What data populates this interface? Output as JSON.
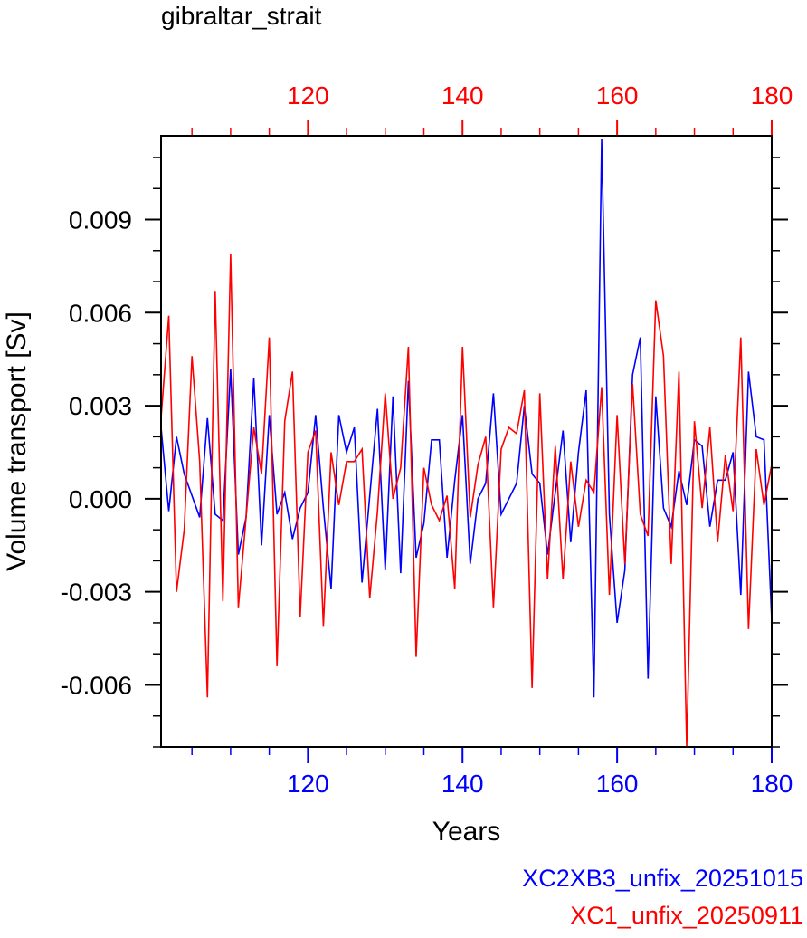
{
  "title": "gibraltar_strait",
  "colors": {
    "blue": "#0000ff",
    "red": "#ff0000",
    "axis": "#000000"
  },
  "chart_data": {
    "type": "line",
    "title": "gibraltar_strait",
    "xlabel": "Years",
    "ylabel": "Volume transport [Sv]",
    "xlim": [
      101,
      180
    ],
    "ylim": [
      -0.008,
      0.0117
    ],
    "x_ticks": [
      120,
      140,
      160,
      180
    ],
    "x_tick_labels": [
      "120",
      "140",
      "160",
      "180"
    ],
    "y_ticks": [
      -0.006,
      -0.003,
      0.0,
      0.003,
      0.006,
      0.009
    ],
    "y_tick_labels": [
      "-0.006",
      "-0.003",
      "0.000",
      "0.003",
      "0.006",
      "0.009"
    ],
    "grid": false,
    "legend_position": "bottom-right",
    "series": [
      {
        "name": "XC2XB3_unfix_20251015",
        "color": "#0000ff",
        "axis": "bottom",
        "x_start": 101,
        "values": [
          0.0023,
          -0.0004,
          0.002,
          0.0008,
          0.0001,
          -0.0006,
          0.0026,
          -0.0005,
          -0.0007,
          0.0042,
          -0.0018,
          -0.0006,
          0.0039,
          -0.0015,
          0.0027,
          -0.0005,
          0.0002,
          -0.0013,
          -0.0003,
          0.0002,
          0.0027,
          -0.0003,
          -0.0029,
          0.0027,
          0.0015,
          0.0023,
          -0.0027,
          0.0001,
          0.0029,
          -0.0023,
          0.0033,
          -0.0024,
          0.0038,
          -0.0019,
          -0.0008,
          0.0019,
          0.0019,
          -0.0019,
          0.0006,
          0.0027,
          -0.0021,
          0.0,
          0.0005,
          0.0034,
          -0.0005,
          0.0,
          0.0005,
          0.003,
          0.0008,
          0.0005,
          -0.0018,
          0.0002,
          0.0022,
          -0.0014,
          0.0015,
          0.0035,
          -0.0064,
          0.0116,
          -0.0005,
          -0.004,
          -0.0023,
          0.004,
          0.0052,
          -0.0058,
          0.0033,
          -0.0003,
          -0.0009,
          0.0009,
          -0.0002,
          0.0019,
          0.0017,
          -0.0009,
          0.0006,
          0.0006,
          0.0015,
          -0.0031,
          0.0041,
          0.002,
          0.0019,
          -0.0039
        ]
      },
      {
        "name": "XC1_unfix_20250911",
        "color": "#ff0000",
        "axis": "top",
        "x_start": 101,
        "values": [
          0.0026,
          0.0059,
          -0.003,
          -0.001,
          0.0046,
          0.0012,
          -0.0064,
          0.0067,
          -0.0033,
          0.0079,
          -0.0035,
          -0.0006,
          0.0023,
          0.0008,
          0.0052,
          -0.0054,
          0.0025,
          0.0041,
          -0.0038,
          0.0015,
          0.0022,
          -0.0041,
          0.0015,
          -0.0002,
          0.0012,
          0.0012,
          0.0016,
          -0.0032,
          -0.0004,
          0.0034,
          0.0,
          0.001,
          0.0049,
          -0.0051,
          0.001,
          -0.0002,
          -0.0007,
          0.0001,
          -0.0029,
          0.0049,
          -0.0006,
          0.0011,
          0.002,
          -0.0035,
          0.0016,
          0.0023,
          0.0021,
          0.0035,
          -0.0061,
          0.0034,
          -0.0026,
          0.0017,
          -0.0026,
          0.0012,
          -0.0009,
          0.0006,
          0.0002,
          0.0036,
          -0.0031,
          0.0027,
          -0.0021,
          0.0037,
          -0.0005,
          -0.0012,
          0.0064,
          0.0046,
          -0.0021,
          0.0041,
          -0.008,
          0.0025,
          -0.0003,
          0.0023,
          -0.0014,
          0.0014,
          -0.0004,
          0.0052,
          -0.0042,
          0.0016,
          -0.0002,
          0.0011
        ]
      }
    ]
  }
}
